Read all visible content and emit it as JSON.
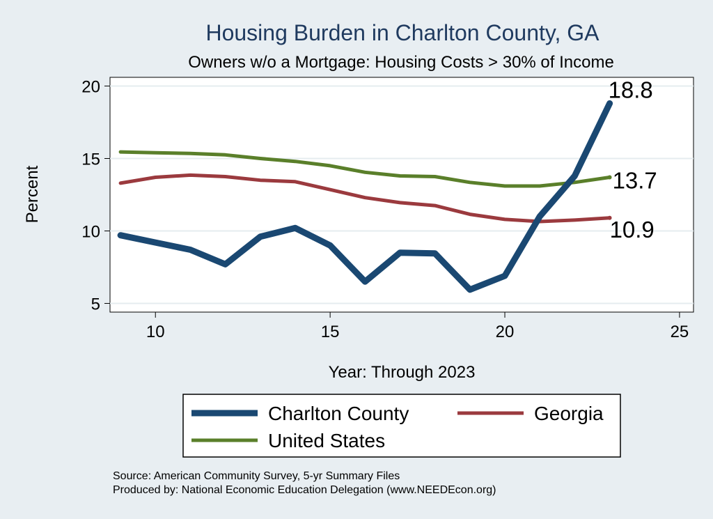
{
  "chart_data": {
    "type": "line",
    "title": "Housing Burden in Charlton County, GA",
    "subtitle": "Owners w/o a Mortgage: Housing Costs > 30% of Income",
    "xlabel": "Year: Through 2023",
    "ylabel": "Percent",
    "xlim": [
      8.7,
      25.4
    ],
    "ylim": [
      4.4,
      20.6
    ],
    "xticks": [
      10,
      15,
      20,
      25
    ],
    "yticks": [
      5,
      10,
      15,
      20
    ],
    "grid": true,
    "legend_position": "bottom",
    "x": [
      9,
      10,
      11,
      12,
      13,
      14,
      15,
      16,
      17,
      18,
      19,
      20,
      21,
      22,
      23
    ],
    "series": [
      {
        "name": "Charlton County",
        "color": "#1a4872",
        "values": [
          9.7,
          9.2,
          8.7,
          7.7,
          9.6,
          10.2,
          9.0,
          6.5,
          8.5,
          8.45,
          5.95,
          6.9,
          11.0,
          13.8,
          18.8
        ],
        "end_label": "18.8"
      },
      {
        "name": "Georgia",
        "color": "#9b3a3e",
        "values": [
          13.3,
          13.7,
          13.85,
          13.75,
          13.5,
          13.4,
          12.85,
          12.3,
          11.95,
          11.75,
          11.15,
          10.8,
          10.65,
          10.75,
          10.9
        ],
        "end_label": "10.9"
      },
      {
        "name": "United States",
        "color": "#5a7f2a",
        "values": [
          15.45,
          15.4,
          15.35,
          15.25,
          15.0,
          14.8,
          14.5,
          14.05,
          13.8,
          13.75,
          13.35,
          13.1,
          13.1,
          13.35,
          13.7
        ],
        "end_label": "13.7"
      }
    ],
    "source": "Source: American Community Survey, 5-yr Summary Files",
    "produced_by": "Produced by: National Economic Education Delegation (www.NEEDEcon.org)"
  }
}
